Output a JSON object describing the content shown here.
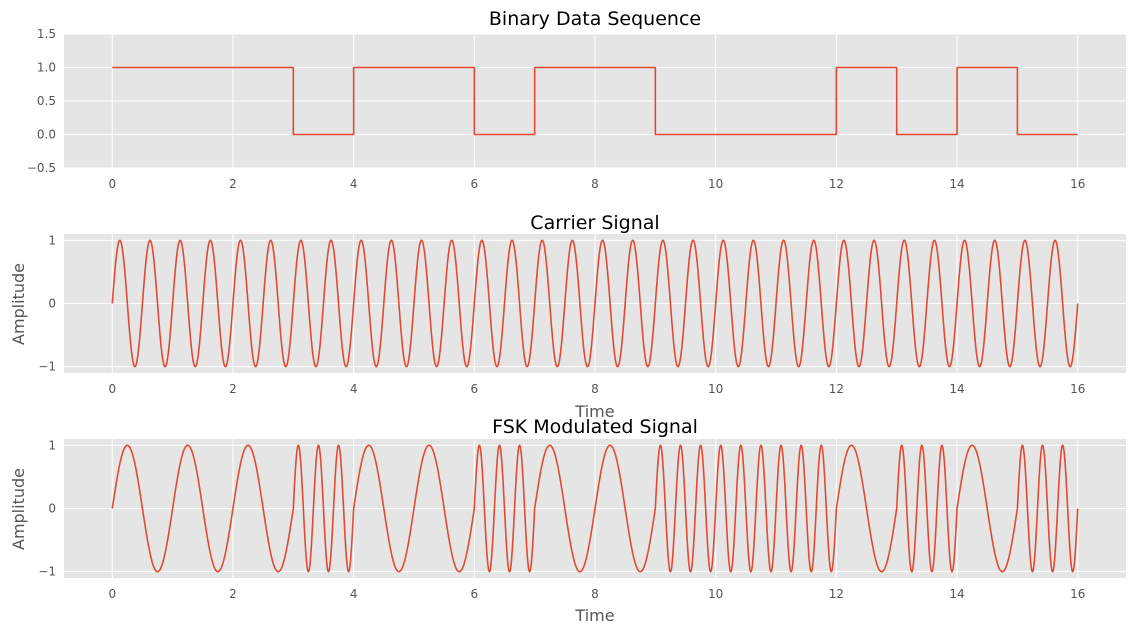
{
  "colors": {
    "line": "#E24A33",
    "axes_background": "#E5E5E5",
    "grid": "#FFFFFF",
    "tick_text": "#555555",
    "title_text": "#000000"
  },
  "chart_data": [
    {
      "type": "line",
      "title": "Binary Data Sequence",
      "xlabel": "",
      "ylabel": "",
      "xlim": [
        -0.8,
        16.8
      ],
      "ylim": [
        -0.5,
        1.5
      ],
      "xticks": [
        0,
        2,
        4,
        6,
        8,
        10,
        12,
        14,
        16
      ],
      "yticks": [
        -0.5,
        0.0,
        0.5,
        1.0,
        1.5
      ],
      "ytick_labels": [
        "−0.5",
        "0.0",
        "0.5",
        "1.0",
        "1.5"
      ],
      "grid": true,
      "style": "step",
      "bits": [
        1,
        1,
        1,
        0,
        1,
        1,
        0,
        1,
        1,
        0,
        0,
        0,
        1,
        0,
        1,
        0
      ],
      "x": [
        0,
        3,
        3,
        4,
        4,
        6,
        6,
        7,
        7,
        9,
        9,
        12,
        12,
        13,
        13,
        14,
        14,
        15,
        15,
        16
      ],
      "y": [
        1,
        1,
        0,
        0,
        1,
        1,
        0,
        0,
        1,
        1,
        0,
        0,
        1,
        1,
        0,
        0,
        1,
        1,
        0,
        0
      ]
    },
    {
      "type": "line",
      "title": "Carrier Signal",
      "xlabel": "Time",
      "ylabel": "Amplitude",
      "xlim": [
        -0.8,
        16.8
      ],
      "ylim": [
        -1.1,
        1.1
      ],
      "xticks": [
        0,
        2,
        4,
        6,
        8,
        10,
        12,
        14,
        16
      ],
      "yticks": [
        -1,
        0,
        1
      ],
      "ytick_labels": [
        "−1",
        "0",
        "1"
      ],
      "grid": true,
      "function": "sin(2*pi*f*t)",
      "frequency": 2,
      "t_range": [
        0,
        16
      ]
    },
    {
      "type": "line",
      "title": "FSK Modulated Signal",
      "xlabel": "Time",
      "ylabel": "Amplitude",
      "xlim": [
        -0.8,
        16.8
      ],
      "ylim": [
        -1.1,
        1.1
      ],
      "xticks": [
        0,
        2,
        4,
        6,
        8,
        10,
        12,
        14,
        16
      ],
      "yticks": [
        -1,
        0,
        1
      ],
      "ytick_labels": [
        "−1",
        "0",
        "1"
      ],
      "grid": true,
      "function": "sin(2*pi*f*t), f = f1 when bit is 1, f0 when bit is 0",
      "f1": 1,
      "f0": 3,
      "bits": [
        1,
        1,
        1,
        0,
        1,
        1,
        0,
        1,
        1,
        0,
        0,
        0,
        1,
        0,
        1,
        0
      ],
      "t_range": [
        0,
        16
      ]
    }
  ]
}
